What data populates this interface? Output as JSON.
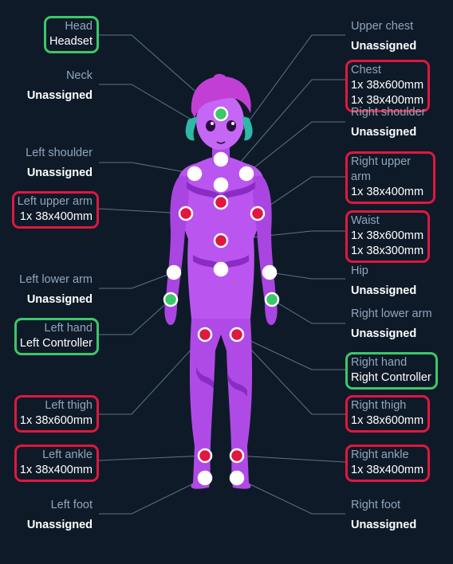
{
  "colors": {
    "background": "#0f1a28",
    "assigned_border": "#e0173f",
    "controller_border": "#3cc769",
    "unassigned_dot": "#ffffff",
    "assigned_dot": "#e0173f",
    "controller_dot": "#3cc769",
    "name_text": "#8fa6bd",
    "value_text": "#ffffff"
  },
  "figure": "purple-slime-humanoid-figure",
  "slots": {
    "head": {
      "name": "Head",
      "value": "Headset",
      "state": "controller"
    },
    "neck": {
      "name": "Neck",
      "value": "Unassigned",
      "state": "unassigned"
    },
    "left_shoulder": {
      "name": "Left shoulder",
      "value": "Unassigned",
      "state": "unassigned"
    },
    "left_upper_arm": {
      "name": "Left upper arm",
      "value": "1x 38x400mm",
      "state": "assigned"
    },
    "left_lower_arm": {
      "name": "Left lower arm",
      "value": "Unassigned",
      "state": "unassigned"
    },
    "left_hand": {
      "name": "Left hand",
      "value": "Left Controller",
      "state": "controller"
    },
    "left_thigh": {
      "name": "Left thigh",
      "value": "1x 38x600mm",
      "state": "assigned"
    },
    "left_ankle": {
      "name": "Left ankle",
      "value": "1x 38x400mm",
      "state": "assigned"
    },
    "left_foot": {
      "name": "Left foot",
      "value": "Unassigned",
      "state": "unassigned"
    },
    "upper_chest": {
      "name": "Upper chest",
      "value": "Unassigned",
      "state": "unassigned"
    },
    "chest": {
      "name": "Chest",
      "value": "1x 38x600mm",
      "value2": "1x 38x400mm",
      "state": "assigned"
    },
    "right_shoulder": {
      "name": "Right shoulder",
      "value": "Unassigned",
      "state": "unassigned"
    },
    "right_upper_arm": {
      "name": "Right upper arm",
      "value": "1x 38x400mm",
      "state": "assigned"
    },
    "waist": {
      "name": "Waist",
      "value": "1x 38x600mm",
      "value2": "1x 38x300mm",
      "state": "assigned"
    },
    "hip": {
      "name": "Hip",
      "value": "Unassigned",
      "state": "unassigned"
    },
    "right_lower_arm": {
      "name": "Right lower arm",
      "value": "Unassigned",
      "state": "unassigned"
    },
    "right_hand": {
      "name": "Right hand",
      "value": "Right Controller",
      "state": "controller"
    },
    "right_thigh": {
      "name": "Right thigh",
      "value": "1x 38x600mm",
      "state": "assigned"
    },
    "right_ankle": {
      "name": "Right ankle",
      "value": "1x 38x400mm",
      "state": "assigned"
    },
    "right_foot": {
      "name": "Right foot",
      "value": "Unassigned",
      "state": "unassigned"
    }
  }
}
